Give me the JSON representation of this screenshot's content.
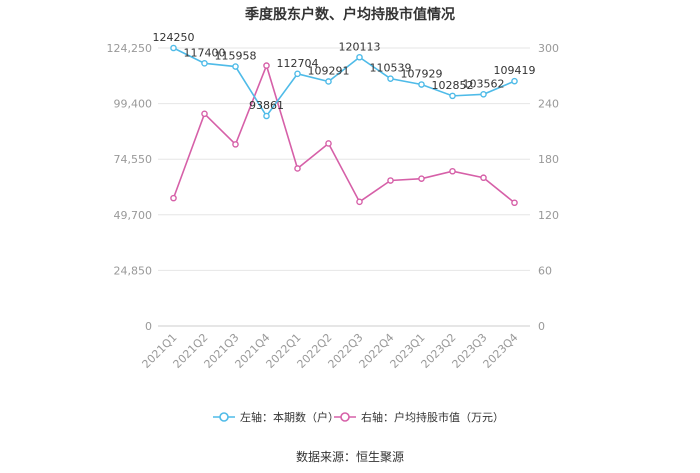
{
  "chart_data": {
    "type": "line",
    "title": "季度股东户数、户均持股市值情况",
    "categories": [
      "2021Q1",
      "2021Q2",
      "2021Q3",
      "2021Q4",
      "2022Q1",
      "2022Q2",
      "2022Q3",
      "2022Q4",
      "2023Q1",
      "2023Q2",
      "2023Q3",
      "2023Q4"
    ],
    "left_axis": {
      "ticks": [
        "0",
        "24,850",
        "49,700",
        "74,550",
        "99,400",
        "124,250"
      ],
      "ylim": [
        0,
        124250
      ]
    },
    "right_axis": {
      "ticks": [
        "0",
        "60",
        "120",
        "180",
        "240",
        "300"
      ],
      "ylim": [
        0,
        300
      ]
    },
    "series": [
      {
        "name": "左轴：本期数（户）",
        "axis": "left",
        "color": "#4fbbe8",
        "values": [
          124250,
          117400,
          115958,
          93861,
          112704,
          109291,
          120113,
          110539,
          107929,
          102852,
          103562,
          109419
        ],
        "labels": [
          "124250",
          "117400",
          "115958",
          "93861",
          "112704",
          "109291",
          "120113",
          "110539",
          "107929",
          "102852",
          "103562",
          "109419"
        ]
      },
      {
        "name": "右轴：户均持股市值（万元）",
        "axis": "right",
        "color": "#d660a8",
        "values": [
          138,
          229,
          196,
          281,
          170,
          197,
          134,
          157,
          159,
          167,
          160,
          133
        ]
      }
    ],
    "grid": true,
    "legend_position": "bottom"
  },
  "source_text": "数据来源：恒生聚源"
}
